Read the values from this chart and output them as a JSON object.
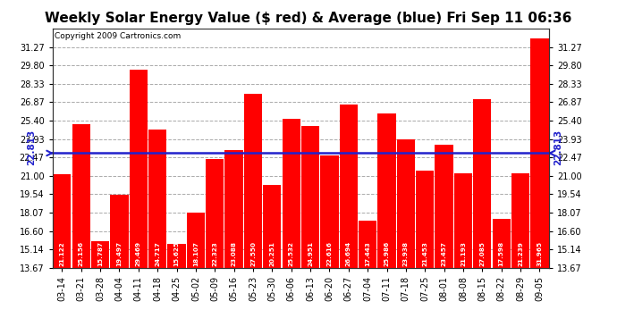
{
  "title": "Weekly Solar Energy Value ($ red) & Average (blue) Fri Sep 11 06:36",
  "copyright": "Copyright 2009 Cartronics.com",
  "categories": [
    "03-14",
    "03-21",
    "03-28",
    "04-04",
    "04-11",
    "04-18",
    "04-25",
    "05-02",
    "05-09",
    "05-16",
    "05-23",
    "05-30",
    "06-06",
    "06-13",
    "06-20",
    "06-27",
    "07-04",
    "07-11",
    "07-18",
    "07-25",
    "08-01",
    "08-08",
    "08-15",
    "08-22",
    "08-29",
    "09-05"
  ],
  "values": [
    21.122,
    25.156,
    15.787,
    19.497,
    29.469,
    24.717,
    15.625,
    18.107,
    22.323,
    23.088,
    27.55,
    20.251,
    25.532,
    24.951,
    22.616,
    26.694,
    17.443,
    25.986,
    23.938,
    21.453,
    23.457,
    21.193,
    27.085,
    17.598,
    21.239,
    31.965
  ],
  "average": 22.813,
  "bar_color": "#ff0000",
  "avg_line_color": "#2222cc",
  "background_color": "#ffffff",
  "plot_bg_color": "#ffffff",
  "grid_color": "#aaaaaa",
  "ylim_min": 13.67,
  "ylim_max": 32.74,
  "yticks": [
    13.67,
    15.14,
    16.6,
    18.07,
    19.54,
    21.0,
    22.47,
    23.93,
    25.4,
    26.87,
    28.33,
    29.8,
    31.27
  ],
  "title_fontsize": 11,
  "copyright_fontsize": 6.5,
  "tick_fontsize": 7,
  "bar_label_fontsize": 5.2,
  "avg_label": "22.813",
  "avg_label_fontsize": 7.5
}
